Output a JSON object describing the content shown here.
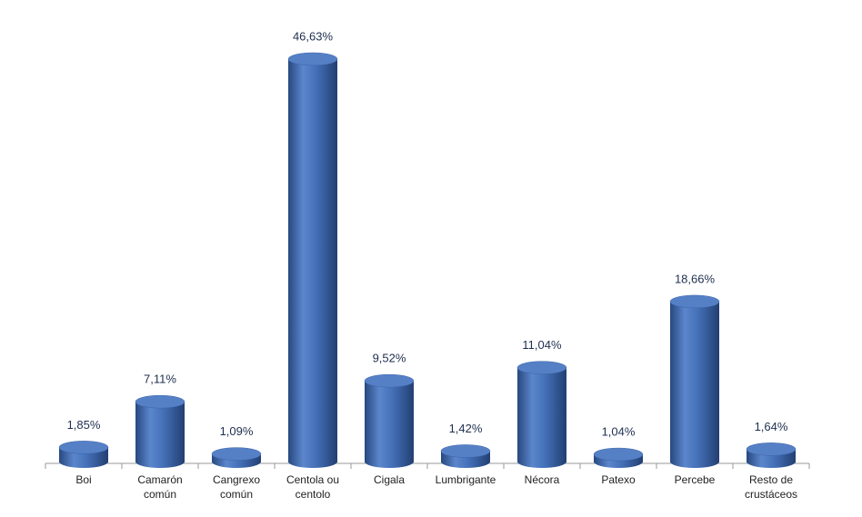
{
  "chart_data": {
    "type": "bar",
    "categories": [
      "Boi",
      "Camarón común",
      "Cangrexo común",
      "Centola ou centolo",
      "Cigala",
      "Lumbrigante",
      "Nécora",
      "Patexo",
      "Percebe",
      "Resto de crustáceos"
    ],
    "values": [
      1.85,
      7.11,
      1.09,
      46.63,
      9.52,
      1.42,
      11.04,
      1.04,
      18.66,
      1.64
    ],
    "value_labels": [
      "1,85%",
      "7,11%",
      "1,09%",
      "46,63%",
      "9,52%",
      "1,42%",
      "11,04%",
      "1,04%",
      "18,66%",
      "1,64%"
    ],
    "color": "#4472c4"
  }
}
